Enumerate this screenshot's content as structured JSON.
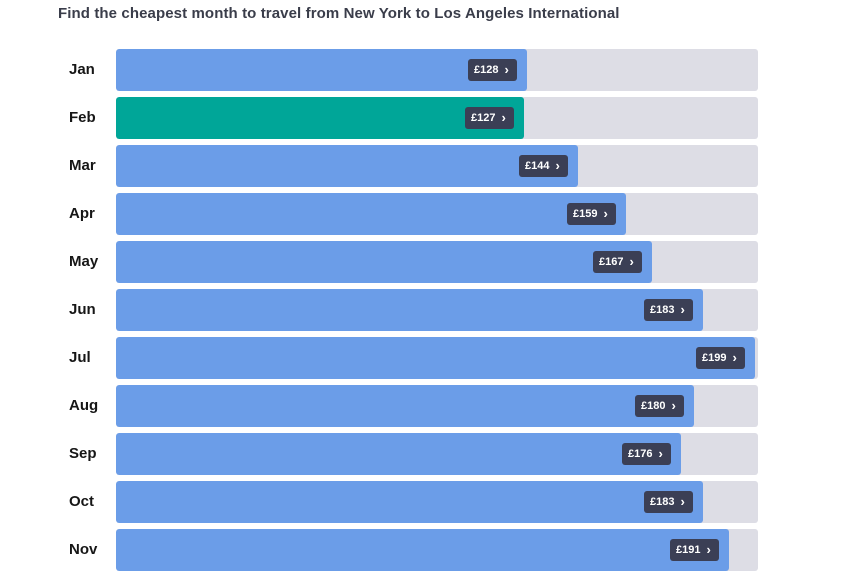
{
  "title": "Find the cheapest month to travel from New York to Los Angeles International",
  "colors": {
    "bar": "#6b9de8",
    "cheapest_bar": "#00a698",
    "track": "#dddde5",
    "badge": "#3b3f55"
  },
  "icons": {
    "badge_arrow": "chevron-right-icon"
  },
  "chart_data": {
    "type": "bar",
    "orientation": "horizontal",
    "title": "Find the cheapest month to travel from New York to Los Angeles International",
    "categories": [
      "Jan",
      "Feb",
      "Mar",
      "Apr",
      "May",
      "Jun",
      "Jul",
      "Aug",
      "Sep",
      "Oct",
      "Nov"
    ],
    "values": [
      128,
      127,
      144,
      159,
      167,
      183,
      199,
      180,
      176,
      183,
      191
    ],
    "labels": [
      "£128",
      "£127",
      "£144",
      "£159",
      "£167",
      "£183",
      "£199",
      "£180",
      "£176",
      "£183",
      "£191"
    ],
    "highlighted_category": "Feb",
    "currency": "£",
    "xlim": [
      0,
      200
    ],
    "grid": false
  }
}
